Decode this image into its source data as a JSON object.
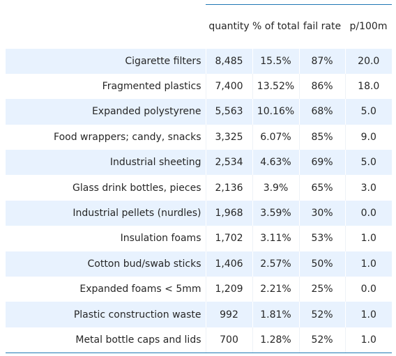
{
  "columns": [
    "quantity",
    "% of total",
    "fail rate",
    "p/100m"
  ],
  "rows": [
    {
      "label": "Cigarette filters",
      "quantity": "8,485",
      "pct_total": "15.5%",
      "fail_rate": "87%",
      "per_100m": "20.0"
    },
    {
      "label": "Fragmented plastics",
      "quantity": "7,400",
      "pct_total": "13.52%",
      "fail_rate": "86%",
      "per_100m": "18.0"
    },
    {
      "label": "Expanded polystyrene",
      "quantity": "5,563",
      "pct_total": "10.16%",
      "fail_rate": "68%",
      "per_100m": "5.0"
    },
    {
      "label": "Food wrappers; candy, snacks",
      "quantity": "3,325",
      "pct_total": "6.07%",
      "fail_rate": "85%",
      "per_100m": "9.0"
    },
    {
      "label": "Industrial sheeting",
      "quantity": "2,534",
      "pct_total": "4.63%",
      "fail_rate": "69%",
      "per_100m": "5.0"
    },
    {
      "label": "Glass drink bottles, pieces",
      "quantity": "2,136",
      "pct_total": "3.9%",
      "fail_rate": "65%",
      "per_100m": "3.0"
    },
    {
      "label": "Industrial pellets (nurdles)",
      "quantity": "1,968",
      "pct_total": "3.59%",
      "fail_rate": "30%",
      "per_100m": "0.0"
    },
    {
      "label": "Insulation foams",
      "quantity": "1,702",
      "pct_total": "3.11%",
      "fail_rate": "53%",
      "per_100m": "1.0"
    },
    {
      "label": "Cotton bud/swab sticks",
      "quantity": "1,406",
      "pct_total": "2.57%",
      "fail_rate": "50%",
      "per_100m": "1.0"
    },
    {
      "label": "Expanded foams < 5mm",
      "quantity": "1,209",
      "pct_total": "2.21%",
      "fail_rate": "25%",
      "per_100m": "0.0"
    },
    {
      "label": "Plastic construction waste",
      "quantity": "992",
      "pct_total": "1.81%",
      "fail_rate": "52%",
      "per_100m": "1.0"
    },
    {
      "label": "Metal bottle caps and lids",
      "quantity": "700",
      "pct_total": "1.28%",
      "fail_rate": "52%",
      "per_100m": "1.0"
    }
  ],
  "colors": {
    "accent_line": "#1f77b4",
    "row_stripe": "#e8f2fe",
    "text": "#262626"
  }
}
